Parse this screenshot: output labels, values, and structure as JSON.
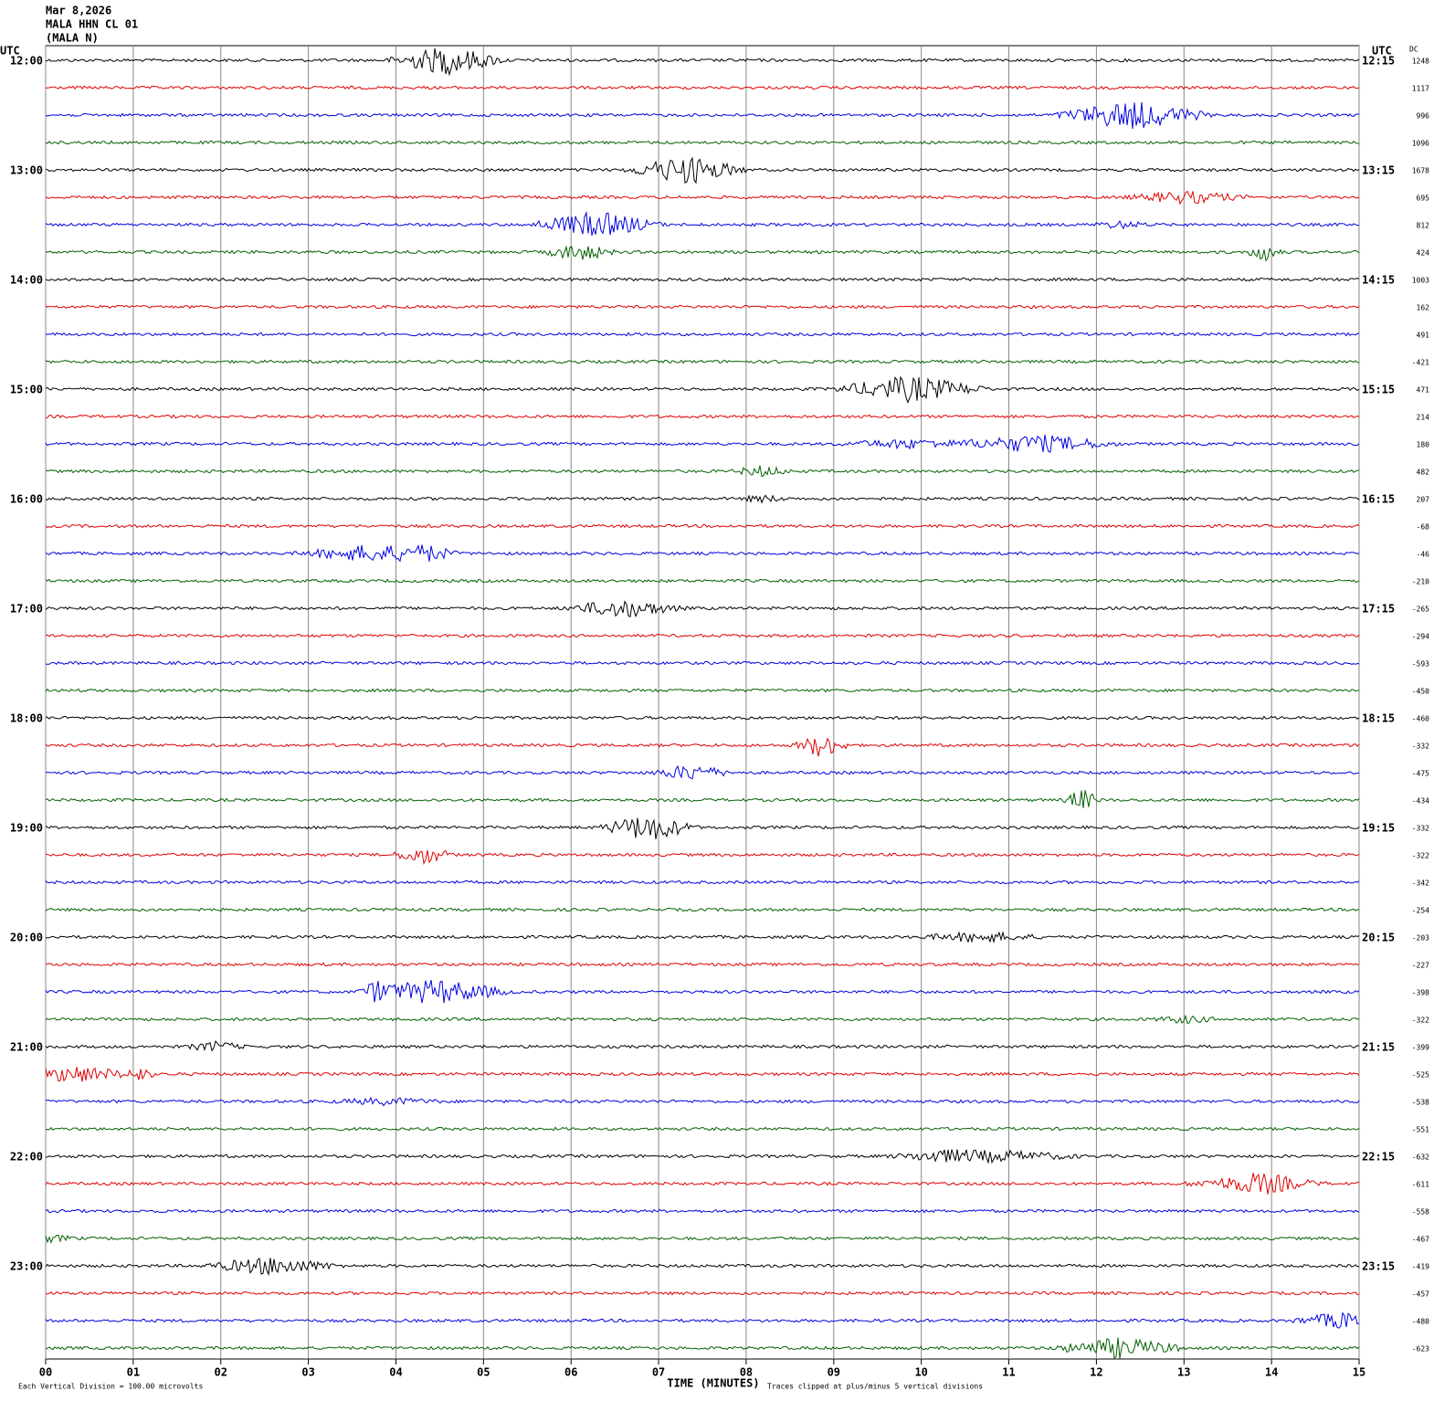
{
  "header": {
    "date": "Mar 8,2026",
    "station": "MALA HHN CL 01",
    "channel": "(MALA N)",
    "utc_left": "UTC",
    "utc_right": "UTC",
    "dc": "DC"
  },
  "trace_colors": [
    "#000000",
    "#e00000",
    "#0000e0",
    "#006000"
  ],
  "left_times": [
    "12:00",
    "13:00",
    "14:00",
    "15:00",
    "16:00",
    "17:00",
    "18:00",
    "19:00",
    "20:00",
    "21:00",
    "22:00",
    "23:00"
  ],
  "right_times": [
    "12:15",
    "13:15",
    "14:15",
    "15:15",
    "16:15",
    "17:15",
    "18:15",
    "19:15",
    "20:15",
    "21:15",
    "22:15",
    "23:15"
  ],
  "dc_values": [
    1248,
    1117,
    996,
    1096,
    1678,
    695,
    812,
    424,
    1003,
    162,
    491,
    -421,
    471,
    214,
    180,
    482,
    207,
    -68,
    -46,
    -210,
    -265,
    -294,
    -593,
    -450,
    -460,
    -332,
    -475,
    -434,
    -332,
    -322,
    -342,
    -254,
    -203,
    -227,
    -398,
    -322,
    -399,
    -525,
    -538,
    -551,
    -632,
    -611,
    -558,
    -467,
    -419,
    -457,
    -480,
    -623
  ],
  "xlim": [
    0,
    15
  ],
  "xticks": [
    {
      "value": 0,
      "label": "00"
    },
    {
      "value": 1,
      "label": "01"
    },
    {
      "value": 2,
      "label": "02"
    },
    {
      "value": 3,
      "label": "03"
    },
    {
      "value": 4,
      "label": "04"
    },
    {
      "value": 5,
      "label": "05"
    },
    {
      "value": 6,
      "label": "06"
    },
    {
      "value": 7,
      "label": "07"
    },
    {
      "value": 8,
      "label": "08"
    },
    {
      "value": 9,
      "label": "09"
    },
    {
      "value": 10,
      "label": "10"
    },
    {
      "value": 11,
      "label": "11"
    },
    {
      "value": 12,
      "label": "12"
    },
    {
      "value": 13,
      "label": "13"
    },
    {
      "value": 14,
      "label": "14"
    },
    {
      "value": 15,
      "label": "15"
    }
  ],
  "xlabel": "TIME (MINUTES)",
  "footer_left": "Each Vertical Division =  100.00 microvolts",
  "footer_right": "Traces clipped at plus/minus 5 vertical divisions"
}
